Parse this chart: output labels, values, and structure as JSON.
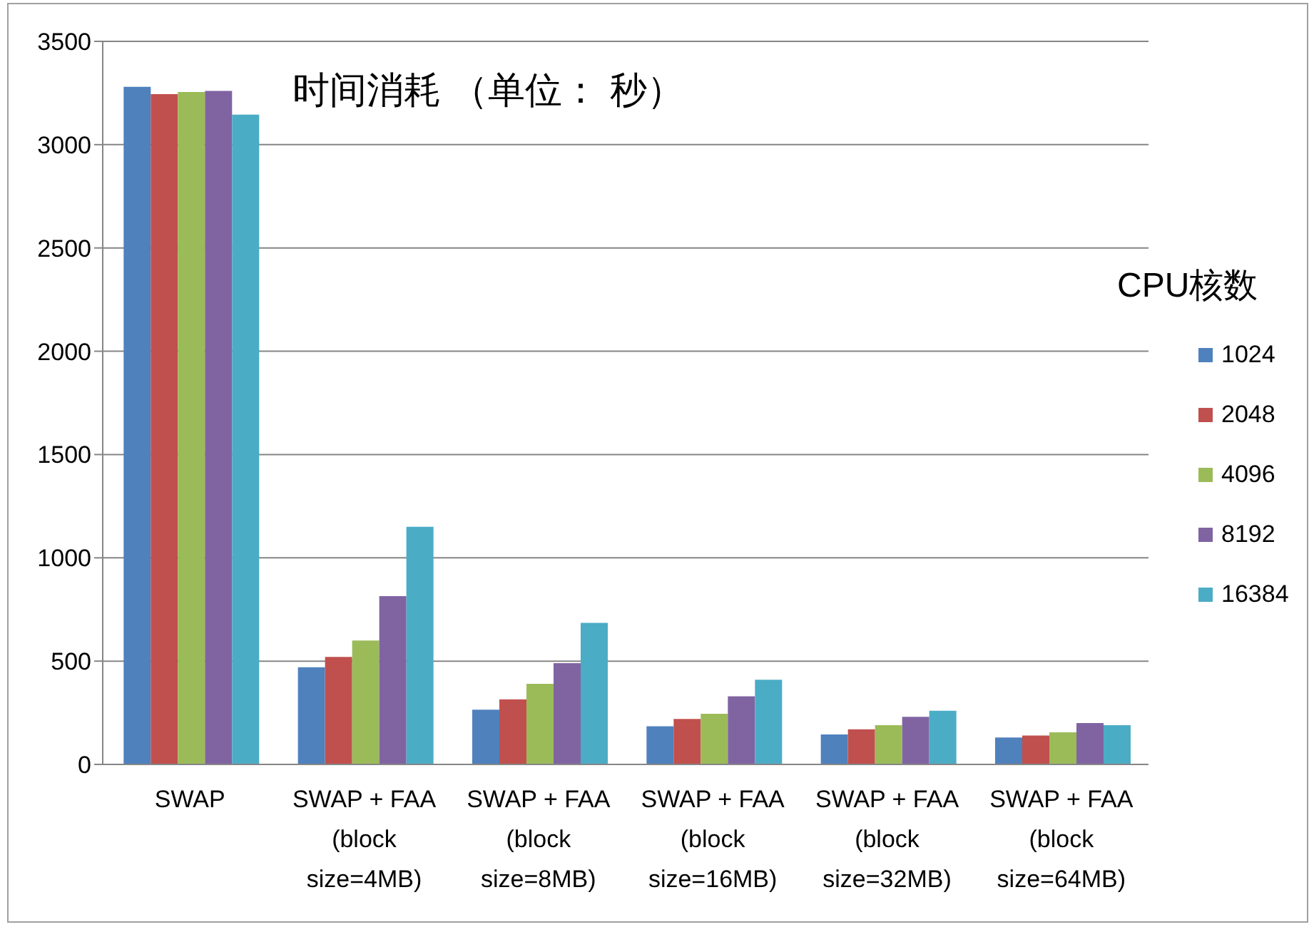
{
  "chart_data": {
    "type": "bar",
    "title": "时间消耗 （单位： 秒）",
    "legend_title": "CPU核数",
    "categories": [
      "SWAP",
      "SWAP + FAA (block size=4MB)",
      "SWAP + FAA (block size=8MB)",
      "SWAP + FAA (block size=16MB)",
      "SWAP + FAA (block size=32MB)",
      "SWAP + FAA (block size=64MB)"
    ],
    "series": [
      {
        "name": "1024",
        "color": "#4f81bd",
        "values": [
          3280,
          470,
          265,
          185,
          145,
          130
        ]
      },
      {
        "name": "2048",
        "color": "#c0504d",
        "values": [
          3245,
          520,
          315,
          220,
          170,
          140
        ]
      },
      {
        "name": "4096",
        "color": "#9bbb59",
        "values": [
          3255,
          600,
          390,
          245,
          190,
          155
        ]
      },
      {
        "name": "8192",
        "color": "#8064a2",
        "values": [
          3260,
          815,
          490,
          330,
          230,
          200
        ]
      },
      {
        "name": "16384",
        "color": "#4bacc6",
        "values": [
          3145,
          1150,
          685,
          410,
          260,
          190
        ]
      }
    ],
    "ylim": [
      0,
      3500
    ],
    "yticks": [
      0,
      500,
      1000,
      1500,
      2000,
      2500,
      3000,
      3500
    ],
    "grid": "y",
    "legend": "right"
  }
}
